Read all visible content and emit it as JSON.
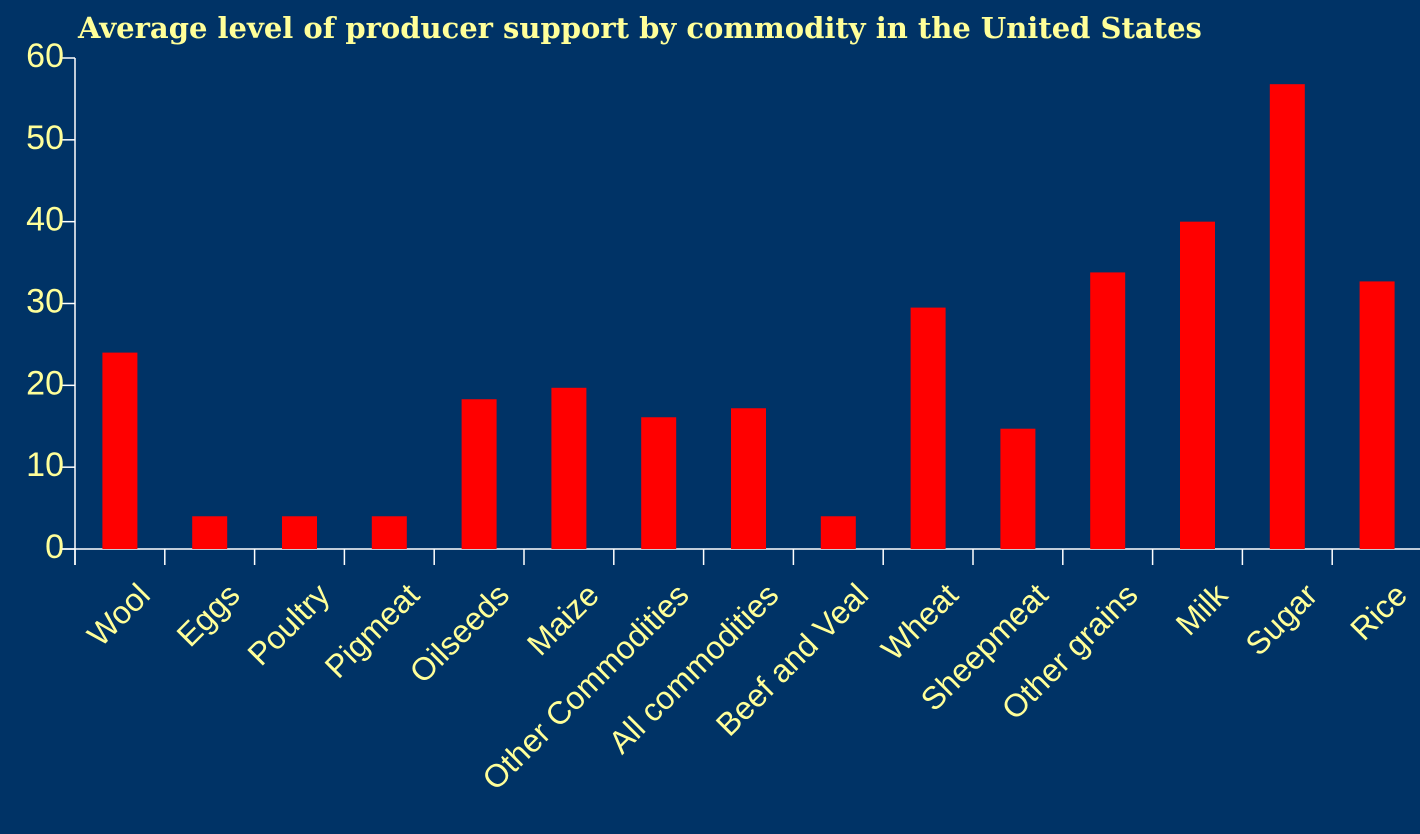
{
  "chart_data": {
    "type": "bar",
    "title": "Average level of producer support by commodity in the United States",
    "xlabel": "",
    "ylabel": "",
    "categories": [
      "Wool",
      "Eggs",
      "Poultry",
      "Pigmeat",
      "Oilseeds",
      "Maize",
      "Other Commodities",
      "All commodities",
      "Beef and Veal",
      "Wheat",
      "Sheepmeat",
      "Other grains",
      "Milk",
      "Sugar",
      "Rice"
    ],
    "values": [
      24,
      4,
      4,
      4,
      18.3,
      19.7,
      16.1,
      17.2,
      4,
      29.5,
      14.7,
      33.8,
      40,
      56.8,
      32.7
    ],
    "ylim": [
      0,
      60
    ],
    "yticks": [
      "0",
      "10",
      "20",
      "30",
      "40",
      "50",
      "60"
    ],
    "grid": false,
    "legend": "none",
    "colors": {
      "background": "#003366",
      "bar": "#ff0000",
      "text": "#ffff99",
      "axis": "#ffffff"
    }
  }
}
